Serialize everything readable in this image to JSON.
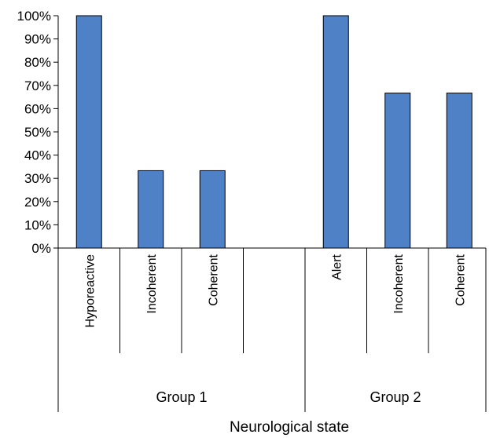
{
  "chart_data": {
    "type": "bar",
    "title": "",
    "xlabel": "Neurological state",
    "ylabel": "",
    "ylim": [
      0,
      100
    ],
    "yticks": [
      "0%",
      "10%",
      "20%",
      "30%",
      "40%",
      "50%",
      "60%",
      "70%",
      "80%",
      "90%",
      "100%"
    ],
    "grid": false,
    "bar_color": "#4f81c7",
    "groups": [
      {
        "name": "Group 1",
        "categories": [
          "Hyporeactive",
          "Incoherent",
          "Coherent"
        ],
        "values": [
          100,
          33.3,
          33.3
        ]
      },
      {
        "name": "Group 2",
        "categories": [
          "Alert",
          "Incoherent",
          "Coherent"
        ],
        "values": [
          100,
          66.7,
          66.7
        ]
      }
    ]
  }
}
